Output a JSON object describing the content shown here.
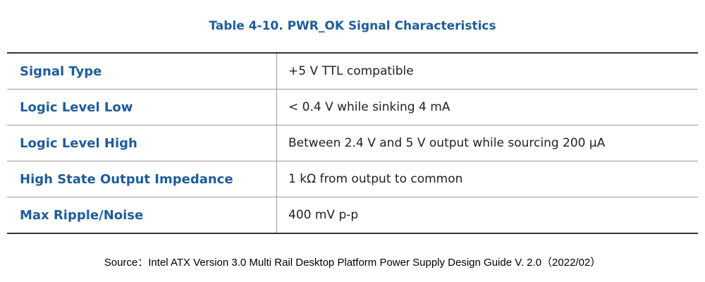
{
  "title": "Table 4-10. PWR_OK Signal Characteristics",
  "table": {
    "rows": [
      [
        "Signal Type",
        "+5 V TTL compatible"
      ],
      [
        "Logic Level Low",
        "< 0.4 V while sinking 4 mA"
      ],
      [
        "Logic Level High",
        "Between 2.4 V and 5 V output while sourcing 200 µA"
      ],
      [
        "High State Output Impedance",
        "1 kΩ from output to common"
      ],
      [
        "Max Ripple/Noise",
        "400 mV p-p"
      ]
    ]
  },
  "source": "Source：Intel ATX Version 3.0 Multi Rail Desktop Platform Power Supply Design Guide V. 2.0（2022/02）"
}
